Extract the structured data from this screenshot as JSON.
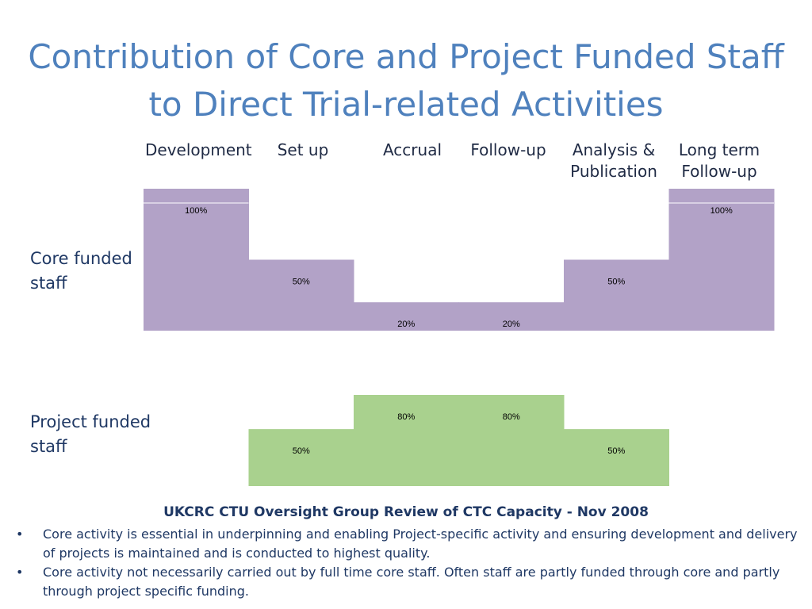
{
  "slide": {
    "title_line1": "Contribution of Core and Project Funded Staff",
    "title_line2": "to Direct Trial-related Activities",
    "row_labels": [
      {
        "line1": "Core funded",
        "line2": "staff"
      },
      {
        "line1": "Project funded",
        "line2": "staff"
      }
    ],
    "footer_title": "UKCRC CTU Oversight Group Review of CTC Capacity  - Nov 2008",
    "bullets": [
      "Core activity is essential in underpinning and enabling Project-specific activity and ensuring development and delivery of projects is maintained and is conducted to highest quality.",
      "Core activity not necessarily carried out by full time core staff. Often staff are partly funded through core and partly through project specific funding."
    ],
    "bullet_symbol": "•"
  },
  "chart_data": {
    "type": "bar",
    "categories": [
      {
        "line1": "Development",
        "line2": ""
      },
      {
        "line1": "Set up",
        "line2": ""
      },
      {
        "line1": "Accrual",
        "line2": ""
      },
      {
        "line1": "Follow-up",
        "line2": ""
      },
      {
        "line1": "Analysis &",
        "line2": "Publication"
      },
      {
        "line1": "Long term",
        "line2": "Follow-up"
      }
    ],
    "series": [
      {
        "values": [
          100,
          50,
          20,
          20,
          50,
          100
        ],
        "labels": [
          "100%",
          "50%",
          "20%",
          "20%",
          "50%",
          "100%"
        ],
        "color": "#b2a2c7"
      },
      {
        "values": [
          0,
          50,
          80,
          80,
          50,
          0
        ],
        "labels": [
          "",
          "50%",
          "80%",
          "80%",
          "50%",
          ""
        ],
        "color": "#a9d18e"
      }
    ],
    "ylim": [
      0,
      100
    ],
    "unit": "%"
  }
}
